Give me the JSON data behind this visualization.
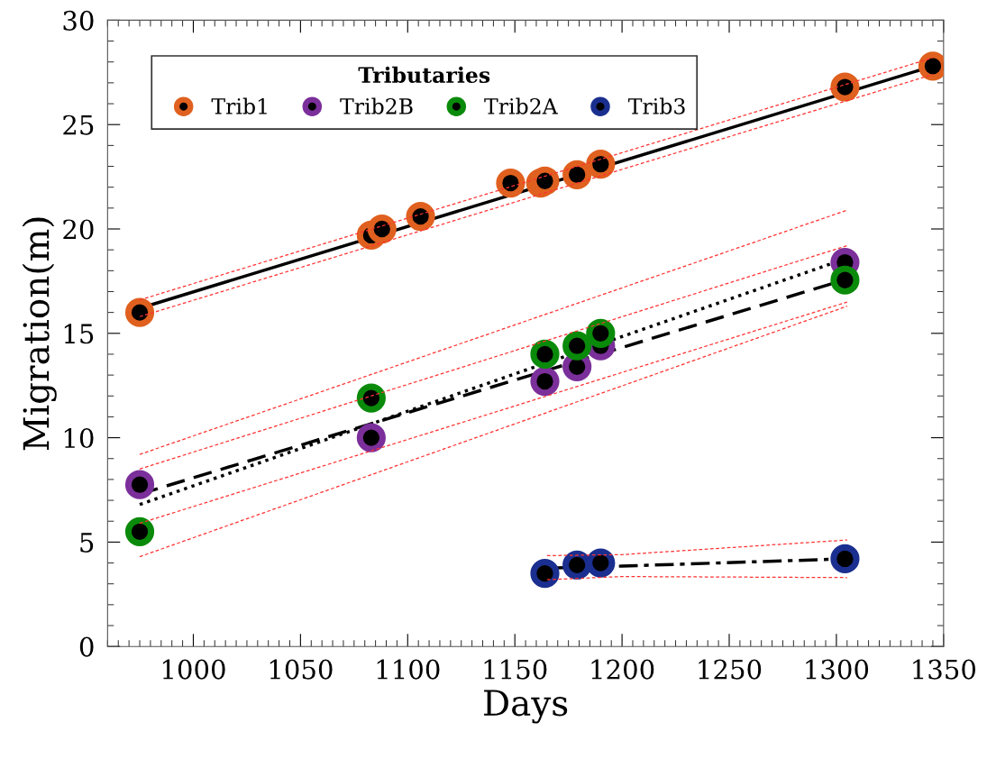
{
  "chart_data": {
    "type": "scatter",
    "xlabel": "Days",
    "ylabel": "Migration(m)",
    "legend_title": "Tributaries",
    "legend": "top left",
    "grid": false,
    "xlim": [
      960,
      1350
    ],
    "xticks": [
      1000,
      1050,
      1100,
      1150,
      1200,
      1250,
      1300,
      1350
    ],
    "ylim": [
      0,
      30
    ],
    "yticks": [
      0,
      5,
      10,
      15,
      20,
      25,
      30
    ],
    "series": [
      {
        "name": "Trib1",
        "color": "#e0601f",
        "marker": "circle",
        "x": [
          975,
          1083,
          1088,
          1106,
          1148,
          1162,
          1164,
          1179,
          1190,
          1304,
          1345
        ],
        "values": [
          16.0,
          19.7,
          20.0,
          20.6,
          22.2,
          22.2,
          22.3,
          22.6,
          23.1,
          26.8,
          27.8
        ]
      },
      {
        "name": "Trib2B",
        "color": "#7b2f9a",
        "marker": "circle",
        "x": [
          975,
          1083,
          1164,
          1179,
          1190,
          1304
        ],
        "values": [
          7.75,
          10.0,
          12.7,
          13.4,
          14.4,
          18.4
        ]
      },
      {
        "name": "Trib2A",
        "color": "#0a8a0a",
        "marker": "circle",
        "x": [
          975,
          1083,
          1164,
          1179,
          1190,
          1304
        ],
        "values": [
          5.5,
          11.9,
          14.0,
          14.4,
          15.0,
          17.55
        ]
      },
      {
        "name": "Trib3",
        "color": "#1a2f8f",
        "marker": "circle",
        "x": [
          1164,
          1179,
          1190,
          1304
        ],
        "values": [
          3.5,
          3.9,
          4.0,
          4.2
        ]
      },
      {
        "type": "line",
        "color": "#000000",
        "marker": "none",
        "line_style": "solid",
        "x": [
          975,
          1345
        ],
        "values": [
          16.2,
          27.8
        ]
      },
      {
        "type": "line",
        "color": "#000000",
        "marker": "none",
        "line_style": "dotted",
        "x": [
          975,
          1305
        ],
        "values": [
          6.8,
          18.6
        ]
      },
      {
        "type": "line",
        "color": "#000000",
        "marker": "none",
        "line_style": "dashed",
        "x": [
          975,
          1305
        ],
        "values": [
          7.3,
          17.6
        ]
      },
      {
        "type": "line",
        "color": "#000000",
        "marker": "none",
        "line_style": "dashdot",
        "x": [
          1165,
          1200,
          1305
        ],
        "values": [
          3.75,
          3.85,
          4.2
        ]
      },
      {
        "type": "line",
        "color": "#ff3333",
        "marker": "none",
        "line_style": "dashed",
        "x": [
          975,
          1345
        ],
        "values": [
          16.6,
          28.2
        ]
      },
      {
        "type": "line",
        "color": "#ff3333",
        "marker": "none",
        "line_style": "dashed",
        "x": [
          975,
          1345
        ],
        "values": [
          15.8,
          27.4
        ]
      },
      {
        "type": "line",
        "color": "#ff3333",
        "marker": "none",
        "line_style": "dashed",
        "x": [
          975,
          1305
        ],
        "values": [
          9.2,
          20.9
        ]
      },
      {
        "type": "line",
        "color": "#ff3333",
        "marker": "none",
        "line_style": "dashed",
        "x": [
          975,
          1305
        ],
        "values": [
          4.3,
          16.3
        ]
      },
      {
        "type": "line",
        "color": "#ff3333",
        "marker": "none",
        "line_style": "dashed",
        "x": [
          975,
          1305
        ],
        "values": [
          8.5,
          19.2
        ]
      },
      {
        "type": "line",
        "color": "#ff3333",
        "marker": "none",
        "line_style": "dashed",
        "x": [
          975,
          1305
        ],
        "values": [
          5.9,
          16.5
        ]
      },
      {
        "type": "line",
        "color": "#ff3333",
        "marker": "none",
        "line_style": "dashed",
        "x": [
          1165,
          1200,
          1305
        ],
        "values": [
          4.35,
          4.4,
          5.1
        ]
      },
      {
        "type": "line",
        "color": "#ff3333",
        "marker": "none",
        "line_style": "dashed",
        "x": [
          1165,
          1200,
          1305
        ],
        "values": [
          3.2,
          3.35,
          3.3
        ]
      }
    ]
  }
}
